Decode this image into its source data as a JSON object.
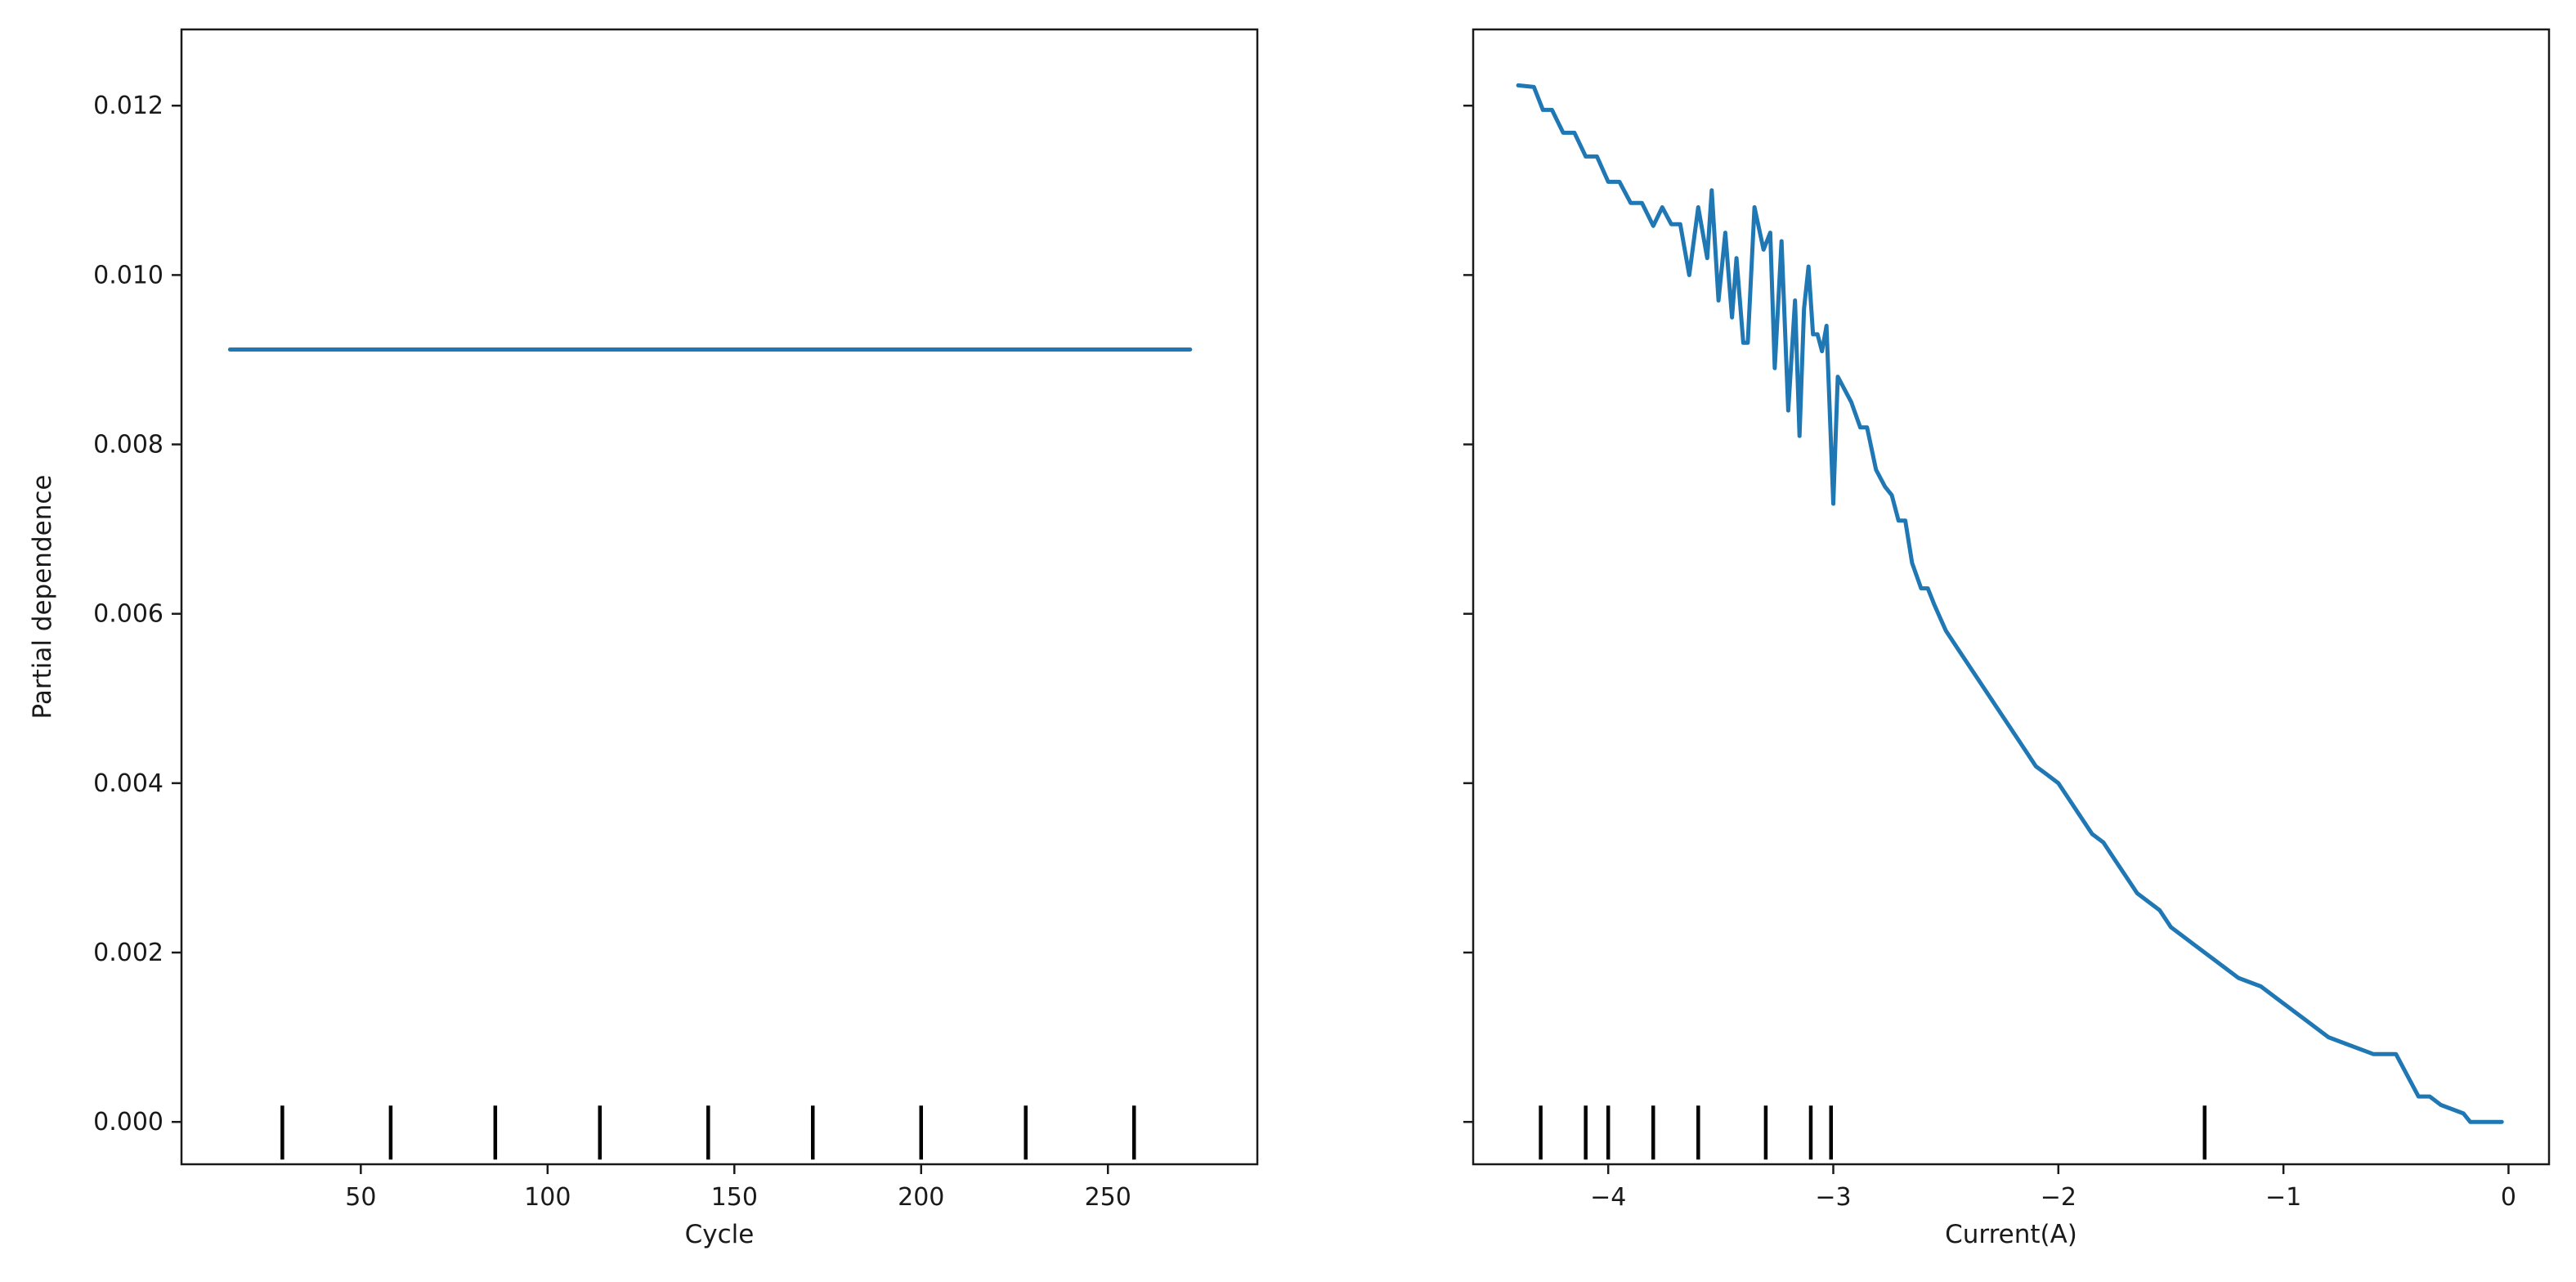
{
  "chart_data": [
    {
      "type": "line",
      "title": "",
      "xlabel": "Cycle",
      "ylabel": "Partial dependence",
      "xlim": [
        2,
        290
      ],
      "ylim": [
        -0.0005,
        0.0129
      ],
      "xticks": [
        50,
        100,
        150,
        200,
        250
      ],
      "xtick_labels": [
        "50",
        "100",
        "150",
        "200",
        "250"
      ],
      "yticks": [
        0.0,
        0.002,
        0.004,
        0.006,
        0.008,
        0.01,
        0.012
      ],
      "ytick_labels": [
        "0.000",
        "0.002",
        "0.004",
        "0.006",
        "0.008",
        "0.010",
        "0.012"
      ],
      "grid": false,
      "color": "#1f77b4",
      "series": [
        {
          "x": [
            15,
            50,
            100,
            150,
            200,
            250,
            272
          ],
          "values": [
            0.00912,
            0.00912,
            0.00912,
            0.00912,
            0.00912,
            0.00912,
            0.00912
          ]
        }
      ],
      "deciles": [
        29,
        58,
        86,
        114,
        143,
        171,
        200,
        228,
        257
      ]
    },
    {
      "type": "line",
      "title": "",
      "xlabel": "Current(A)",
      "ylabel": "",
      "xlim": [
        -4.6,
        0.18
      ],
      "ylim": [
        -0.0005,
        0.0129
      ],
      "xticks": [
        -4,
        -3,
        -2,
        -1,
        0
      ],
      "xtick_labels": [
        "−4",
        "−3",
        "−2",
        "−1",
        "0"
      ],
      "yticks": [
        0.0,
        0.002,
        0.004,
        0.006,
        0.008,
        0.01,
        0.012
      ],
      "ytick_labels": [
        "",
        "",
        "",
        "",
        "",
        "",
        ""
      ],
      "grid": false,
      "color": "#1f77b4",
      "series": [
        {
          "x": [
            -4.4,
            -4.33,
            -4.29,
            -4.25,
            -4.2,
            -4.15,
            -4.1,
            -4.05,
            -4.0,
            -3.95,
            -3.9,
            -3.85,
            -3.8,
            -3.76,
            -3.72,
            -3.68,
            -3.64,
            -3.6,
            -3.56,
            -3.54,
            -3.51,
            -3.48,
            -3.45,
            -3.43,
            -3.4,
            -3.38,
            -3.35,
            -3.31,
            -3.28,
            -3.26,
            -3.23,
            -3.2,
            -3.17,
            -3.15,
            -3.13,
            -3.11,
            -3.09,
            -3.07,
            -3.05,
            -3.03,
            -3.0,
            -2.98,
            -2.96,
            -2.94,
            -2.92,
            -2.88,
            -2.85,
            -2.81,
            -2.77,
            -2.74,
            -2.71,
            -2.68,
            -2.65,
            -2.61,
            -2.58,
            -2.55,
            -2.5,
            -2.45,
            -2.4,
            -2.35,
            -2.3,
            -2.25,
            -2.2,
            -2.15,
            -2.1,
            -2.05,
            -2.0,
            -1.95,
            -1.9,
            -1.85,
            -1.8,
            -1.75,
            -1.7,
            -1.65,
            -1.6,
            -1.55,
            -1.5,
            -1.4,
            -1.3,
            -1.2,
            -1.1,
            -1.0,
            -0.9,
            -0.8,
            -0.7,
            -0.6,
            -0.5,
            -0.4,
            -0.35,
            -0.3,
            -0.2,
            -0.17,
            -0.12,
            -0.07,
            -0.03
          ],
          "values": [
            0.01224,
            0.01222,
            0.01195,
            0.01195,
            0.01168,
            0.01168,
            0.0114,
            0.0114,
            0.0111,
            0.0111,
            0.01085,
            0.01085,
            0.01058,
            0.0108,
            0.0106,
            0.0106,
            0.01,
            0.0108,
            0.0102,
            0.011,
            0.0097,
            0.0105,
            0.0095,
            0.0102,
            0.0092,
            0.0092,
            0.0108,
            0.0103,
            0.0105,
            0.0089,
            0.0104,
            0.0084,
            0.0097,
            0.0081,
            0.0096,
            0.0101,
            0.0093,
            0.0093,
            0.0091,
            0.0094,
            0.0073,
            0.0088,
            0.0087,
            0.0086,
            0.0085,
            0.0082,
            0.0082,
            0.0077,
            0.0075,
            0.0074,
            0.0071,
            0.0071,
            0.0066,
            0.0063,
            0.0063,
            0.0061,
            0.0058,
            0.0056,
            0.0054,
            0.0052,
            0.005,
            0.0048,
            0.0046,
            0.0044,
            0.0042,
            0.0041,
            0.004,
            0.0038,
            0.0036,
            0.0034,
            0.0033,
            0.0031,
            0.0029,
            0.0027,
            0.0026,
            0.0025,
            0.0023,
            0.0021,
            0.0019,
            0.0017,
            0.0016,
            0.0014,
            0.0012,
            0.001,
            0.0009,
            0.0008,
            0.0008,
            0.0003,
            0.0003,
            0.0002,
            0.0001,
            0.0,
            0.0,
            0.0,
            0.0
          ]
        }
      ],
      "deciles": [
        -4.3,
        -4.1,
        -4.0,
        -3.8,
        -3.6,
        -3.3,
        -3.1,
        -3.01,
        -1.35
      ]
    }
  ]
}
